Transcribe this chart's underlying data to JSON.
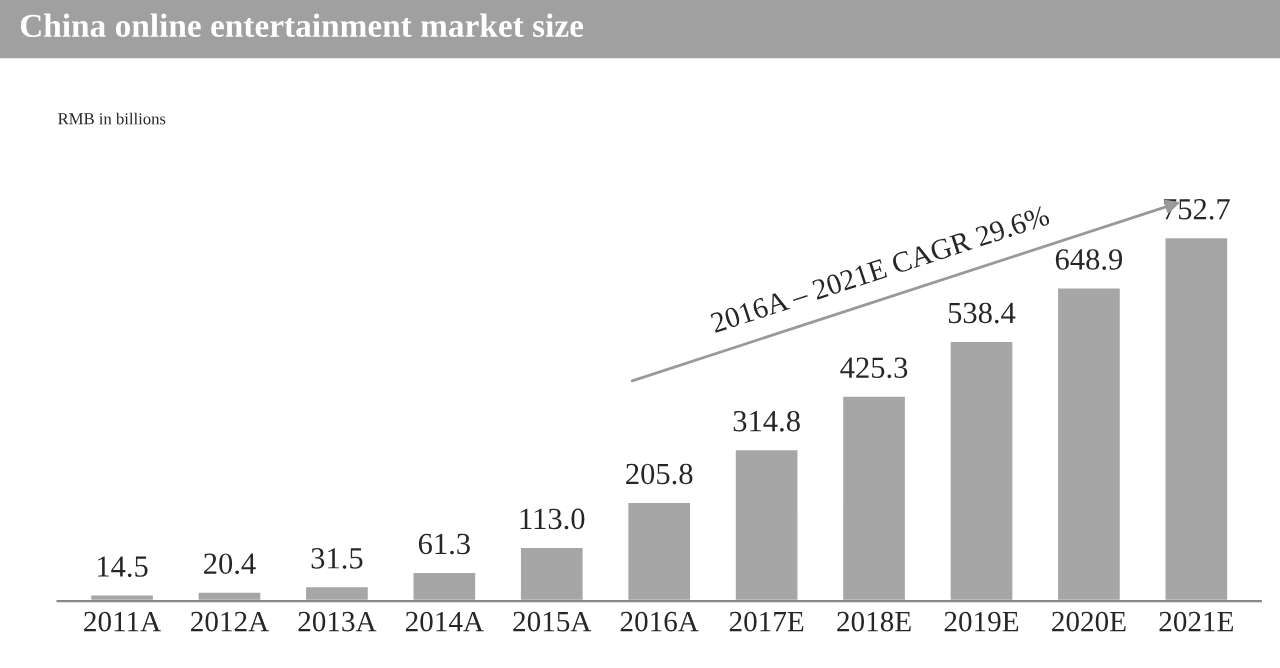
{
  "chart_data": {
    "type": "bar",
    "title": "China online entertainment market size",
    "categories": [
      "2011A",
      "2012A",
      "2013A",
      "2014A",
      "2015A",
      "2016A",
      "2017E",
      "2018E",
      "2019E",
      "2020E",
      "2021E"
    ],
    "values": [
      14.5,
      20.4,
      31.5,
      61.3,
      113.0,
      205.8,
      314.8,
      425.3,
      538.4,
      648.9,
      752.7
    ],
    "value_labels": [
      "14.5",
      "20.4",
      "31.5",
      "61.3",
      "113.0",
      "205.8",
      "314.8",
      "425.3",
      "538.4",
      "648.9",
      "752.7"
    ],
    "color": "#a6a6a6",
    "annotations": [
      "RMB in billions",
      "2016A – 2021E CAGR 29.6%"
    ],
    "tick_labels": "x",
    "grid": false,
    "legend": false
  }
}
